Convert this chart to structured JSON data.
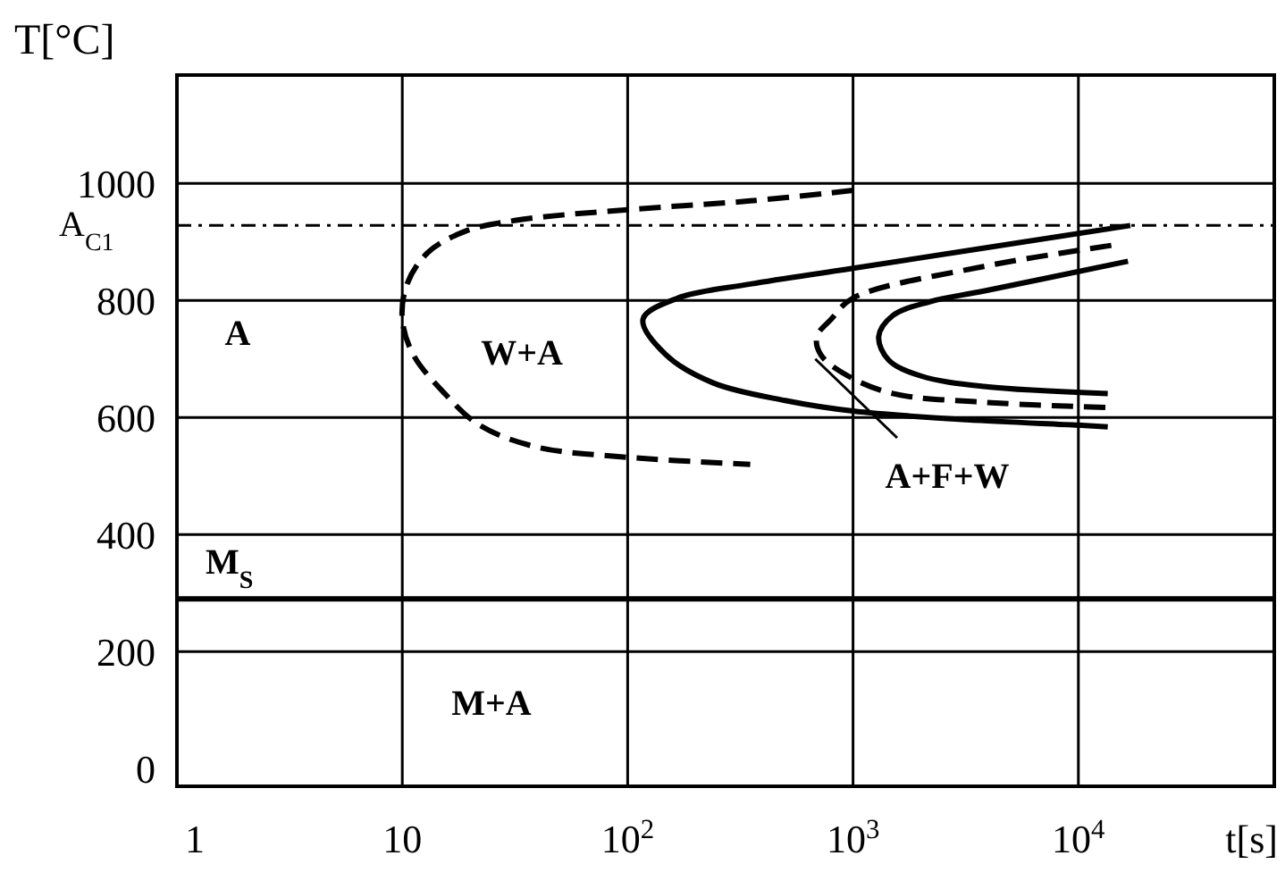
{
  "chart_data": {
    "type": "line",
    "xlabel": "t[s]",
    "ylabel": "T[°C]",
    "log": "x",
    "grid": true,
    "xlim": [
      1,
      74000
    ],
    "ylim": [
      -30,
      1185
    ],
    "xticks": [
      1,
      10,
      {
        "value": 100,
        "label": "10$^{2}$"
      },
      {
        "value": 1000,
        "label": "10$^{3}$"
      },
      {
        "value": 10000,
        "label": "10$^{4}$"
      }
    ],
    "yticks": [
      0,
      200,
      400,
      600,
      800,
      1000
    ],
    "series": [
      {
        "color": "#000000",
        "line_style": "dashed",
        "x": [
          1000,
          350,
          100,
          32,
          19,
          13,
          10.5,
          10,
          11.2,
          15.5,
          22,
          39,
          100,
          350
        ],
        "values": [
          988,
          970,
          955,
          937,
          918,
          882,
          828,
          768,
          707,
          640,
          587,
          550,
          532,
          520
        ]
      },
      {
        "color": "#000000",
        "line_style": "solid",
        "x": [
          17000,
          1000,
          350,
          167,
          117,
          148,
          240,
          500,
          1000,
          3200,
          10000,
          13500
        ],
        "values": [
          928,
          855,
          828,
          804,
          768,
          707,
          659,
          629,
          611,
          596,
          587,
          584
        ]
      },
      {
        "color": "#000000",
        "line_style": "dashed",
        "x": [
          14000,
          3800,
          1000,
          800,
          690,
          720,
          950,
          1500,
          3800,
          13500
        ],
        "values": [
          894,
          858,
          804,
          768,
          738,
          707,
          671,
          641,
          626,
          617
        ]
      },
      {
        "color": "#000000",
        "line_style": "solid",
        "x": [
          16600,
          3800,
          2200,
          1500,
          1300,
          1440,
          2000,
          3800,
          13500
        ],
        "values": [
          867,
          816,
          798,
          774,
          738,
          698,
          671,
          653,
          641
        ]
      }
    ],
    "ref_lines": [
      {
        "axis": "y",
        "value": 928,
        "label": "A$_{C1}$",
        "line_style": "dashdot",
        "color": "#000000"
      },
      {
        "axis": "y",
        "value": 290,
        "label": "M$_{S}$",
        "line_style": "solid",
        "color": "#000000"
      }
    ],
    "annotations": [
      "A",
      "W+A",
      {
        "text": "A+F+W",
        "x": 680,
        "y": 700
      },
      "M+A"
    ]
  }
}
